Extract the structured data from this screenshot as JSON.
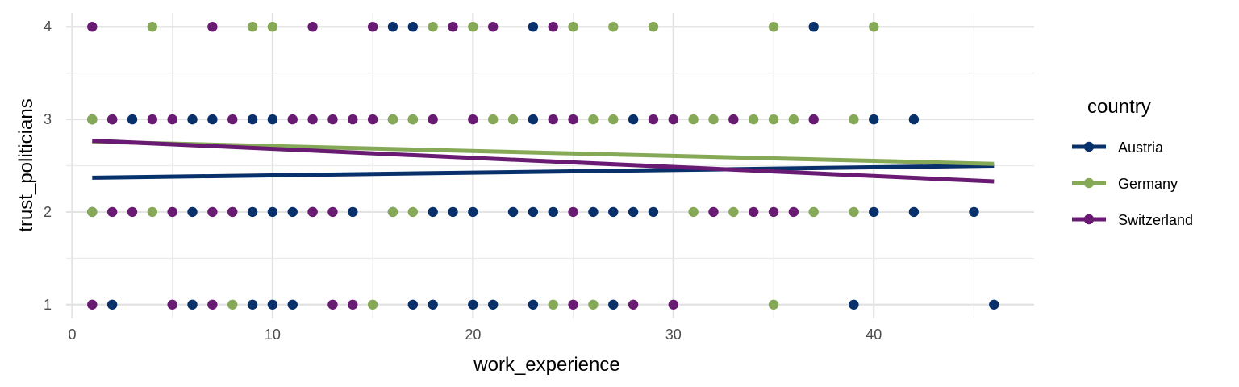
{
  "chart_data": {
    "type": "scatter",
    "xlabel": "work_experience",
    "ylabel": "trust_politicians",
    "xlim": [
      -0.3,
      48
    ],
    "ylim": [
      0.85,
      4.15
    ],
    "x_ticks": [
      0,
      10,
      20,
      30,
      40
    ],
    "y_ticks": [
      1,
      2,
      3,
      4
    ],
    "x_tick_labels": [
      "0",
      "10",
      "20",
      "30",
      "40"
    ],
    "y_tick_labels": [
      "1",
      "2",
      "3",
      "4"
    ],
    "grid": true,
    "legend": {
      "title": "country",
      "position": "right"
    },
    "series": [
      {
        "name": "Austria",
        "color": "#08306b",
        "fit_line": {
          "x": [
            1,
            46
          ],
          "y": [
            2.37,
            2.5
          ]
        },
        "points": [
          [
            16,
            4
          ],
          [
            17,
            4
          ],
          [
            23,
            4
          ],
          [
            37,
            4
          ],
          [
            1,
            3
          ],
          [
            2,
            3
          ],
          [
            3,
            3
          ],
          [
            6,
            3
          ],
          [
            7,
            3
          ],
          [
            9,
            3
          ],
          [
            10,
            3
          ],
          [
            16,
            3
          ],
          [
            17,
            3
          ],
          [
            23,
            3
          ],
          [
            28,
            3
          ],
          [
            40,
            3
          ],
          [
            42,
            3
          ],
          [
            1,
            2
          ],
          [
            6,
            2
          ],
          [
            9,
            2
          ],
          [
            10,
            2
          ],
          [
            11,
            2
          ],
          [
            12,
            2
          ],
          [
            14,
            2
          ],
          [
            16,
            2
          ],
          [
            18,
            2
          ],
          [
            19,
            2
          ],
          [
            20,
            2
          ],
          [
            22,
            2
          ],
          [
            23,
            2
          ],
          [
            24,
            2
          ],
          [
            26,
            2
          ],
          [
            27,
            2
          ],
          [
            28,
            2
          ],
          [
            29,
            2
          ],
          [
            40,
            2
          ],
          [
            42,
            2
          ],
          [
            45,
            2
          ],
          [
            2,
            1
          ],
          [
            6,
            1
          ],
          [
            9,
            1
          ],
          [
            10,
            1
          ],
          [
            11,
            1
          ],
          [
            17,
            1
          ],
          [
            18,
            1
          ],
          [
            20,
            1
          ],
          [
            21,
            1
          ],
          [
            23,
            1
          ],
          [
            27,
            1
          ],
          [
            39,
            1
          ],
          [
            46,
            1
          ]
        ]
      },
      {
        "name": "Germany",
        "color": "#86a957",
        "fit_line": {
          "x": [
            1,
            46
          ],
          "y": [
            2.76,
            2.52
          ]
        },
        "points": [
          [
            4,
            4
          ],
          [
            9,
            4
          ],
          [
            10,
            4
          ],
          [
            18,
            4
          ],
          [
            20,
            4
          ],
          [
            25,
            4
          ],
          [
            27,
            4
          ],
          [
            29,
            4
          ],
          [
            35,
            4
          ],
          [
            40,
            4
          ],
          [
            1,
            3
          ],
          [
            16,
            3
          ],
          [
            17,
            3
          ],
          [
            21,
            3
          ],
          [
            22,
            3
          ],
          [
            26,
            3
          ],
          [
            27,
            3
          ],
          [
            31,
            3
          ],
          [
            32,
            3
          ],
          [
            34,
            3
          ],
          [
            35,
            3
          ],
          [
            36,
            3
          ],
          [
            39,
            3
          ],
          [
            1,
            2
          ],
          [
            4,
            2
          ],
          [
            5,
            2
          ],
          [
            8,
            2
          ],
          [
            16,
            2
          ],
          [
            17,
            2
          ],
          [
            31,
            2
          ],
          [
            33,
            2
          ],
          [
            37,
            2
          ],
          [
            39,
            2
          ],
          [
            8,
            1
          ],
          [
            15,
            1
          ],
          [
            24,
            1
          ],
          [
            26,
            1
          ],
          [
            35,
            1
          ]
        ]
      },
      {
        "name": "Switzerland",
        "color": "#691a72",
        "fit_line": {
          "x": [
            1,
            46
          ],
          "y": [
            2.77,
            2.33
          ]
        },
        "points": [
          [
            1,
            4
          ],
          [
            7,
            4
          ],
          [
            12,
            4
          ],
          [
            15,
            4
          ],
          [
            19,
            4
          ],
          [
            21,
            4
          ],
          [
            24,
            4
          ],
          [
            2,
            3
          ],
          [
            4,
            3
          ],
          [
            5,
            3
          ],
          [
            8,
            3
          ],
          [
            11,
            3
          ],
          [
            12,
            3
          ],
          [
            13,
            3
          ],
          [
            14,
            3
          ],
          [
            15,
            3
          ],
          [
            18,
            3
          ],
          [
            20,
            3
          ],
          [
            24,
            3
          ],
          [
            25,
            3
          ],
          [
            29,
            3
          ],
          [
            30,
            3
          ],
          [
            33,
            3
          ],
          [
            37,
            3
          ],
          [
            2,
            2
          ],
          [
            3,
            2
          ],
          [
            5,
            2
          ],
          [
            7,
            2
          ],
          [
            8,
            2
          ],
          [
            12,
            2
          ],
          [
            13,
            2
          ],
          [
            25,
            2
          ],
          [
            32,
            2
          ],
          [
            34,
            2
          ],
          [
            35,
            2
          ],
          [
            36,
            2
          ],
          [
            1,
            1
          ],
          [
            5,
            1
          ],
          [
            7,
            1
          ],
          [
            13,
            1
          ],
          [
            14,
            1
          ],
          [
            25,
            1
          ],
          [
            28,
            1
          ],
          [
            30,
            1
          ]
        ]
      }
    ]
  }
}
